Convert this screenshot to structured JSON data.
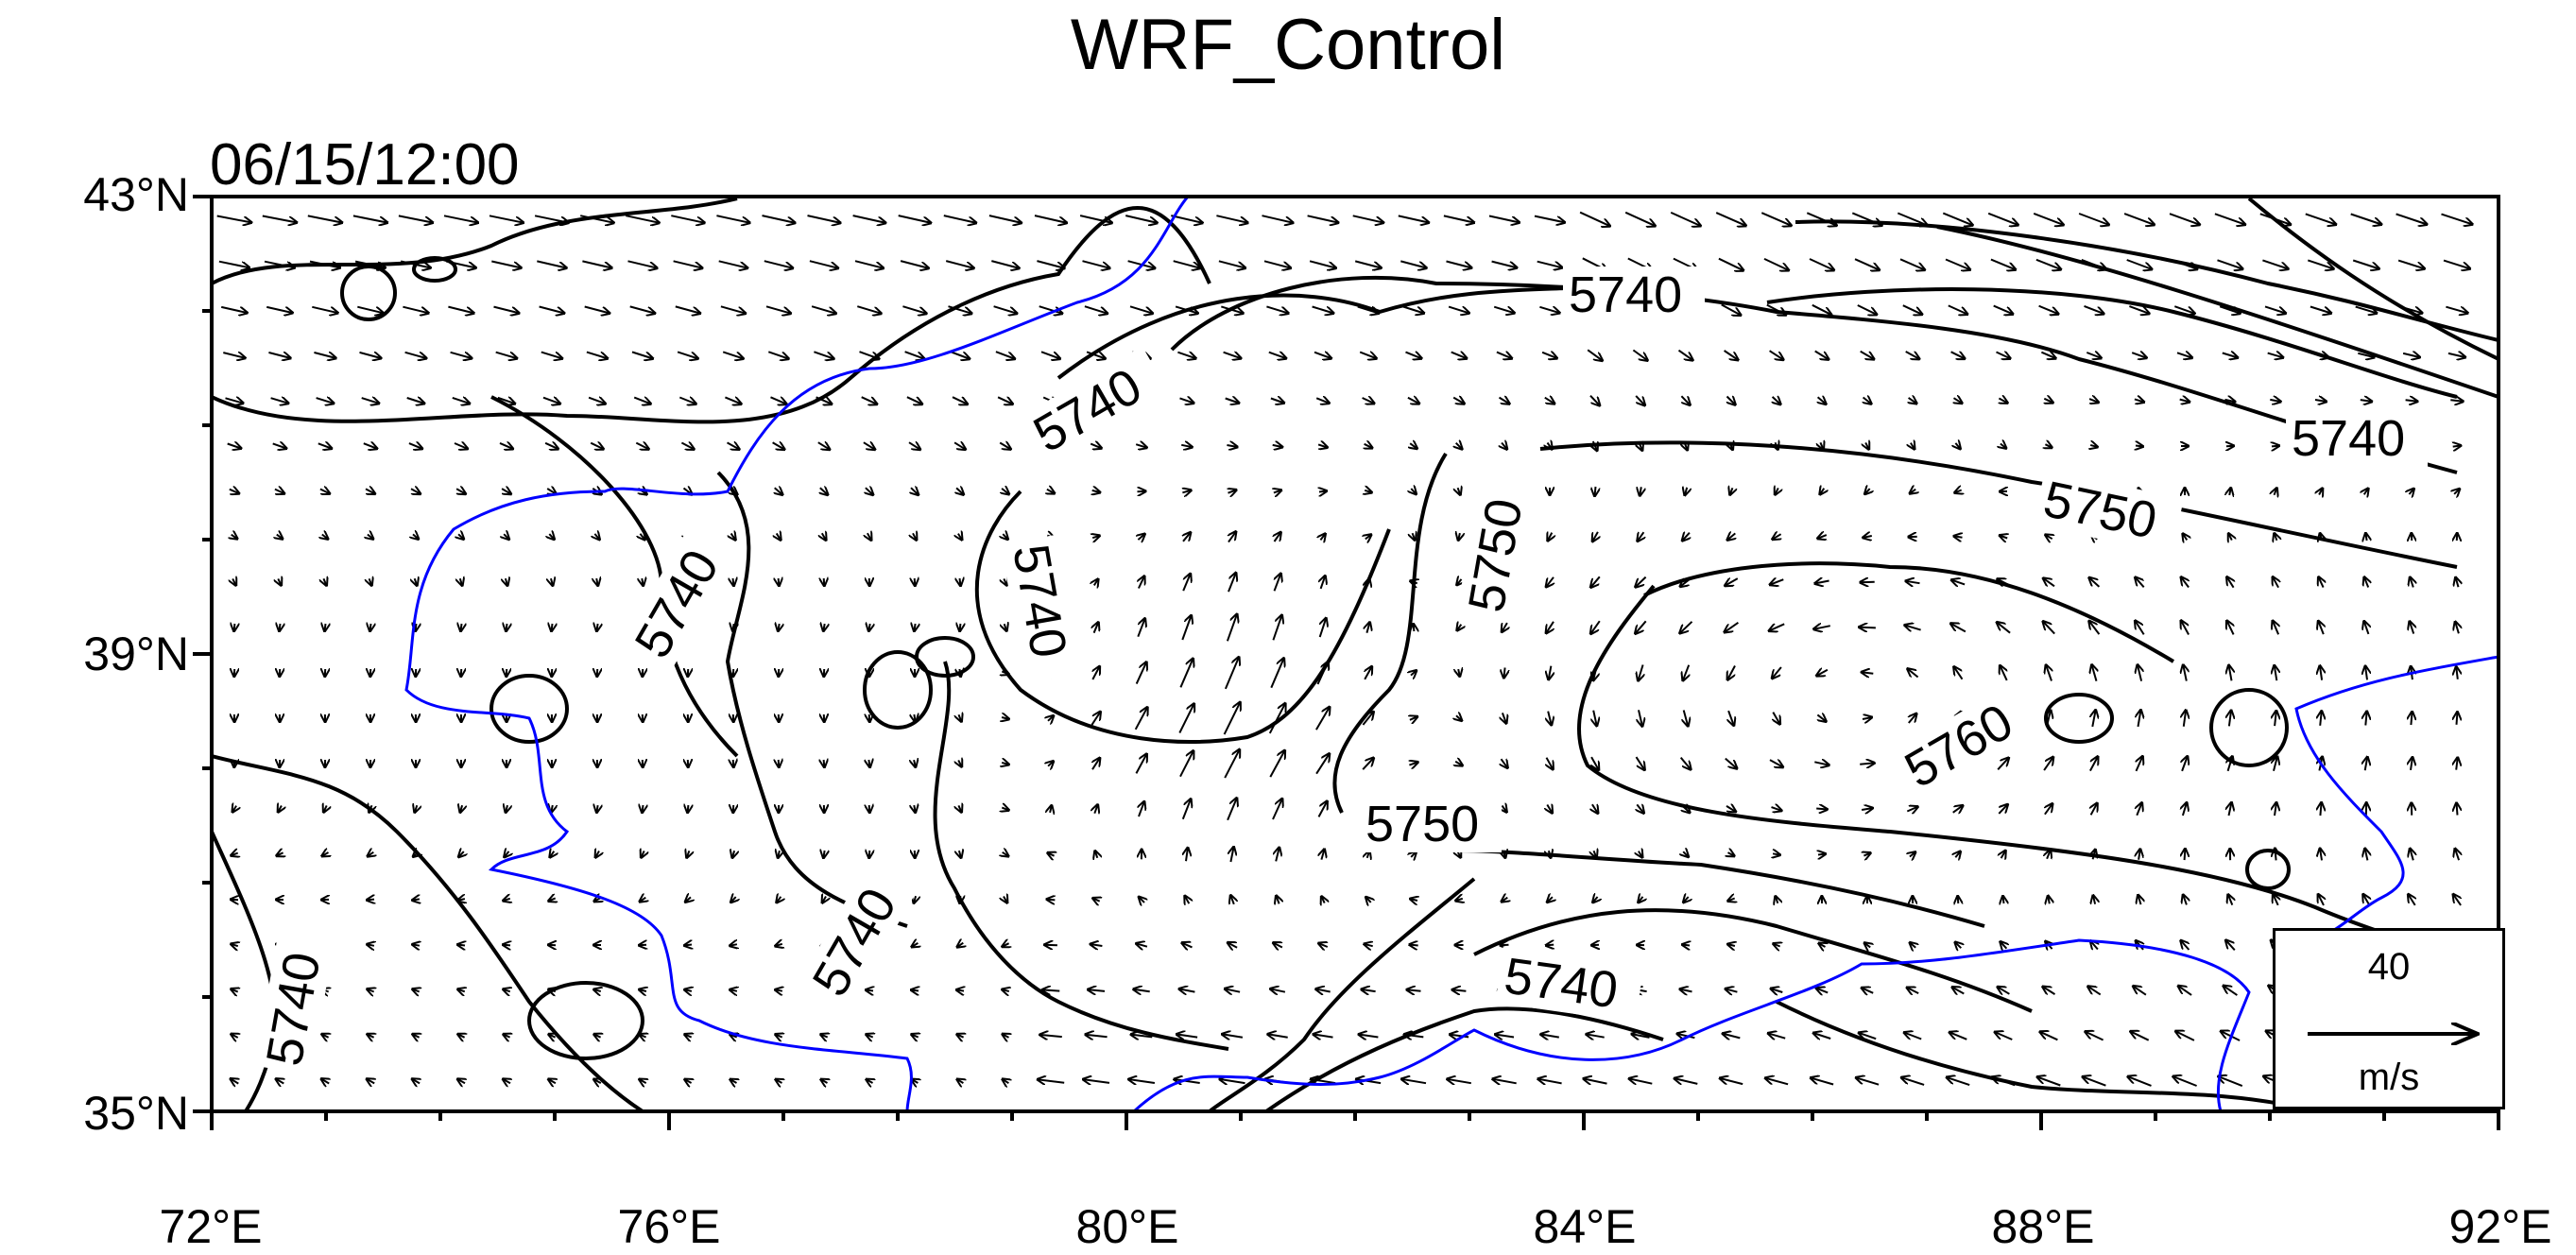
{
  "map": {
    "title": "WRF_Control",
    "valid_time": "06/15/12:00",
    "lat_labels": [
      "43°N",
      "39°N",
      "35°N"
    ],
    "lon_labels": [
      "72°E",
      "76°E",
      "80°E",
      "84°E",
      "88°E",
      "92°E"
    ],
    "extent": {
      "lon_min": 72,
      "lon_max": 92,
      "lat_min": 35,
      "lat_max": 43
    },
    "contour_labels": [
      "5740",
      "5740",
      "5740",
      "5750",
      "5740",
      "5740",
      "5750",
      "5760",
      "5750",
      "5740",
      "5740",
      "5740"
    ],
    "contour_color": "#000000",
    "boundary_color": "#0000ff",
    "reference_vector": {
      "magnitude": "40",
      "unit": "m/s"
    }
  }
}
